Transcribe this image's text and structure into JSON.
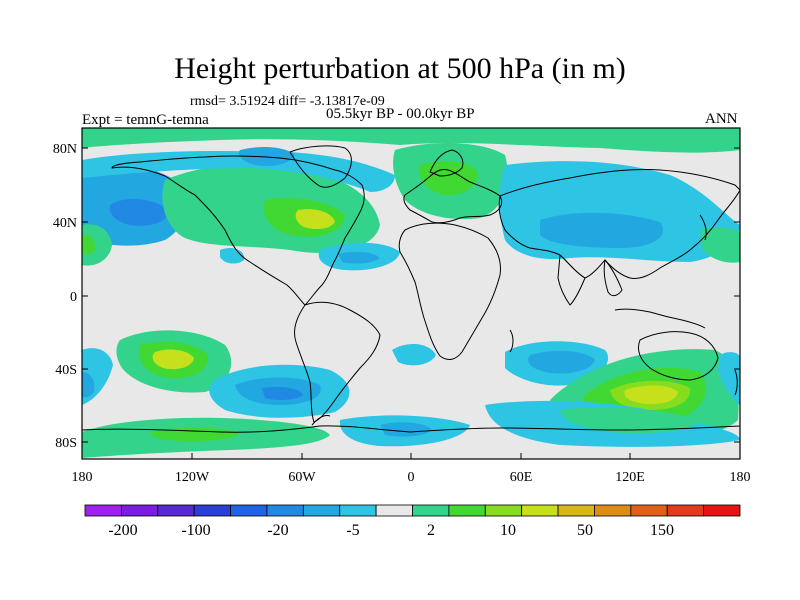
{
  "header": {
    "title": "Height perturbation at 500 hPa (in m)",
    "stats": "rmsd= 3.51924 diff= -3.13817e-09",
    "experiment": "Expt = temnG-temna",
    "period": "05.5kyr BP - 00.0kyr BP",
    "season": "ANN"
  },
  "axes": {
    "lat_labels": [
      "80N",
      "40N",
      "0",
      "40S",
      "80S"
    ],
    "lon_labels": [
      "180",
      "120W",
      "60W",
      "0",
      "60E",
      "120E",
      "180"
    ]
  },
  "colorbar": {
    "labels": [
      "-200",
      "-100",
      "-20",
      "-5",
      "2",
      "10",
      "50",
      "150"
    ],
    "colors": [
      "#a020f0",
      "#7a1de0",
      "#5828d0",
      "#2a3fd6",
      "#1f62e3",
      "#2188e4",
      "#23a7e0",
      "#2ec4e4",
      "#e8e8e8",
      "#33d38b",
      "#42d833",
      "#86dc1e",
      "#c7e01c",
      "#d7b618",
      "#dd8c14",
      "#e0601a",
      "#e23a1e",
      "#e81212"
    ]
  },
  "palette": {
    "neutral": "#e8e8e8",
    "light_blue": "#2ec4e4",
    "mid_blue": "#23a7e0",
    "blue": "#2188e4",
    "light_green": "#33d38b",
    "green": "#42d833",
    "yellow_green": "#c7e01c"
  }
}
